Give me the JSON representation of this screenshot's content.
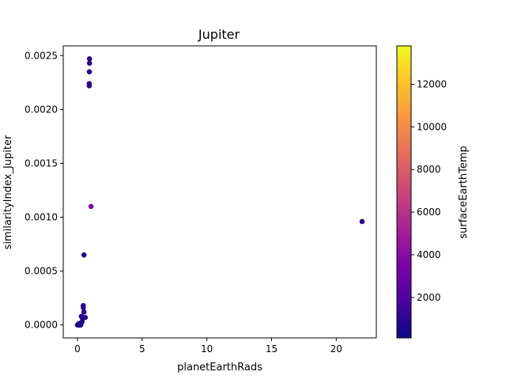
{
  "chart_data": {
    "type": "scatter",
    "title": "Jupiter",
    "xlabel": "planetEarthRads",
    "ylabel": "similarityIndex_Jupiter",
    "xlim": [
      -1.1,
      23.1
    ],
    "ylim": [
      -0.00012,
      0.00259
    ],
    "x_ticks": [
      0,
      5,
      10,
      15,
      20
    ],
    "x_tick_labels": [
      "0",
      "5",
      "10",
      "15",
      "20"
    ],
    "y_ticks": [
      0,
      0.0005,
      0.001,
      0.0015,
      0.002,
      0.0025
    ],
    "y_tick_labels": [
      "0.0000",
      "0.0005",
      "0.0010",
      "0.0015",
      "0.0020",
      "0.0025"
    ],
    "grid": false,
    "colorbar": {
      "label": "surfaceEarthTemp",
      "colormap": "plasma",
      "range": [
        100,
        13800
      ],
      "ticks": [
        2000,
        4000,
        6000,
        8000,
        10000,
        12000
      ],
      "tick_labels": [
        "2000",
        "4000",
        "6000",
        "8000",
        "10000",
        "12000"
      ]
    },
    "points": [
      {
        "x": 0.93,
        "y": 0.00247,
        "c": 900
      },
      {
        "x": 0.93,
        "y": 0.00243,
        "c": 900
      },
      {
        "x": 0.92,
        "y": 0.00235,
        "c": 900
      },
      {
        "x": 0.91,
        "y": 0.00224,
        "c": 900
      },
      {
        "x": 0.91,
        "y": 0.00222,
        "c": 900
      },
      {
        "x": 1.05,
        "y": 0.0011,
        "c": 3800
      },
      {
        "x": 22.0,
        "y": 0.00096,
        "c": 1000
      },
      {
        "x": 0.5,
        "y": 0.00065,
        "c": 900
      },
      {
        "x": 0.45,
        "y": 0.00018,
        "c": 800
      },
      {
        "x": 0.45,
        "y": 0.00016,
        "c": 800
      },
      {
        "x": 0.5,
        "y": 0.00012,
        "c": 800
      },
      {
        "x": 0.3,
        "y": 8e-05,
        "c": 700
      },
      {
        "x": 0.6,
        "y": 7e-05,
        "c": 900
      },
      {
        "x": 0.4,
        "y": 6e-05,
        "c": 700
      },
      {
        "x": 0.35,
        "y": 3e-05,
        "c": 600
      },
      {
        "x": 0.28,
        "y": 2e-05,
        "c": 600
      },
      {
        "x": 0.2,
        "y": 1e-05,
        "c": 500
      },
      {
        "x": 0.15,
        "y": 0.0,
        "c": 500
      },
      {
        "x": 0.1,
        "y": 0.0,
        "c": 500
      },
      {
        "x": 0.05,
        "y": 0.0,
        "c": 400
      },
      {
        "x": 0.0,
        "y": 0.0,
        "c": 400
      },
      {
        "x": 0.25,
        "y": 0.0,
        "c": 500
      },
      {
        "x": 0.08,
        "y": 1e-05,
        "c": 500
      }
    ]
  }
}
